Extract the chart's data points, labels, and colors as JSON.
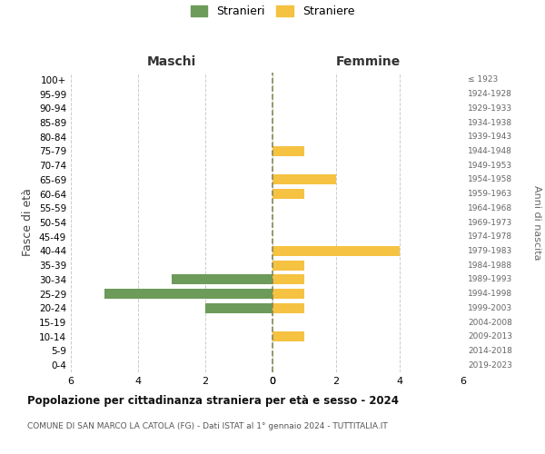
{
  "age_groups": [
    "100+",
    "95-99",
    "90-94",
    "85-89",
    "80-84",
    "75-79",
    "70-74",
    "65-69",
    "60-64",
    "55-59",
    "50-54",
    "45-49",
    "40-44",
    "35-39",
    "30-34",
    "25-29",
    "20-24",
    "15-19",
    "10-14",
    "5-9",
    "0-4"
  ],
  "birth_years": [
    "≤ 1923",
    "1924-1928",
    "1929-1933",
    "1934-1938",
    "1939-1943",
    "1944-1948",
    "1949-1953",
    "1954-1958",
    "1959-1963",
    "1964-1968",
    "1969-1973",
    "1974-1978",
    "1979-1983",
    "1984-1988",
    "1989-1993",
    "1994-1998",
    "1999-2003",
    "2004-2008",
    "2009-2013",
    "2014-2018",
    "2019-2023"
  ],
  "maschi": [
    0,
    0,
    0,
    0,
    0,
    0,
    0,
    0,
    0,
    0,
    0,
    0,
    0,
    0,
    3,
    5,
    2,
    0,
    0,
    0,
    0
  ],
  "femmine": [
    0,
    0,
    0,
    0,
    0,
    1,
    0,
    2,
    1,
    0,
    0,
    0,
    4,
    1,
    1,
    1,
    1,
    0,
    1,
    0,
    0
  ],
  "male_color": "#6d9b5a",
  "female_color": "#f5c242",
  "title_main": "Popolazione per cittadinanza straniera per età e sesso - 2024",
  "title_sub": "COMUNE DI SAN MARCO LA CATOLA (FG) - Dati ISTAT al 1° gennaio 2024 - TUTTITALIA.IT",
  "ylabel_left": "Fasce di età",
  "ylabel_right": "Anni di nascita",
  "label_maschi": "Maschi",
  "label_femmine": "Femmine",
  "legend_male": "Stranieri",
  "legend_female": "Straniere",
  "xlim": 6,
  "bg_color": "#ffffff",
  "grid_color": "#cccccc",
  "bar_height": 0.7
}
